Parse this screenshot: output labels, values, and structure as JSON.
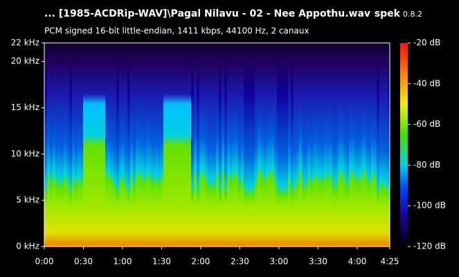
{
  "chart_data": {
    "type": "spectrogram",
    "title": "... [1985-ACDRip-WAV]\\Pagal Nilavu - 02 - Nee Appothu.wav",
    "app_name": "spek",
    "app_version": "0.8.2",
    "subtitle": "PCM signed 16-bit little-endian, 1411 kbps, 44100 Hz, 2 canaux",
    "xlim": [
      0,
      265
    ],
    "xticks": [
      {
        "value": 0,
        "label": "0:00"
      },
      {
        "value": 30,
        "label": "0:30"
      },
      {
        "value": 60,
        "label": "1:00"
      },
      {
        "value": 90,
        "label": "1:30"
      },
      {
        "value": 120,
        "label": "2:00"
      },
      {
        "value": 150,
        "label": "2:30"
      },
      {
        "value": 180,
        "label": "3:00"
      },
      {
        "value": 210,
        "label": "3:30"
      },
      {
        "value": 240,
        "label": "4:00"
      },
      {
        "value": 265,
        "label": "4:25"
      }
    ],
    "ylim": [
      0,
      22
    ],
    "yticks": [
      {
        "value": 0,
        "label": "0 kHz"
      },
      {
        "value": 5,
        "label": "5 kHz"
      },
      {
        "value": 10,
        "label": "10 kHz"
      },
      {
        "value": 15,
        "label": "15 kHz"
      },
      {
        "value": 20,
        "label": "20 kHz"
      },
      {
        "value": 22,
        "label": "22 kHz"
      }
    ],
    "zlim": [
      -120,
      -20
    ],
    "zticks": [
      {
        "value": -20,
        "label": "-20 dB"
      },
      {
        "value": -40,
        "label": "-40 dB"
      },
      {
        "value": -60,
        "label": "-60 dB"
      },
      {
        "value": -80,
        "label": "-80 dB"
      },
      {
        "value": -100,
        "label": "-100 dB"
      },
      {
        "value": -120,
        "label": "-120 dB"
      }
    ]
  }
}
